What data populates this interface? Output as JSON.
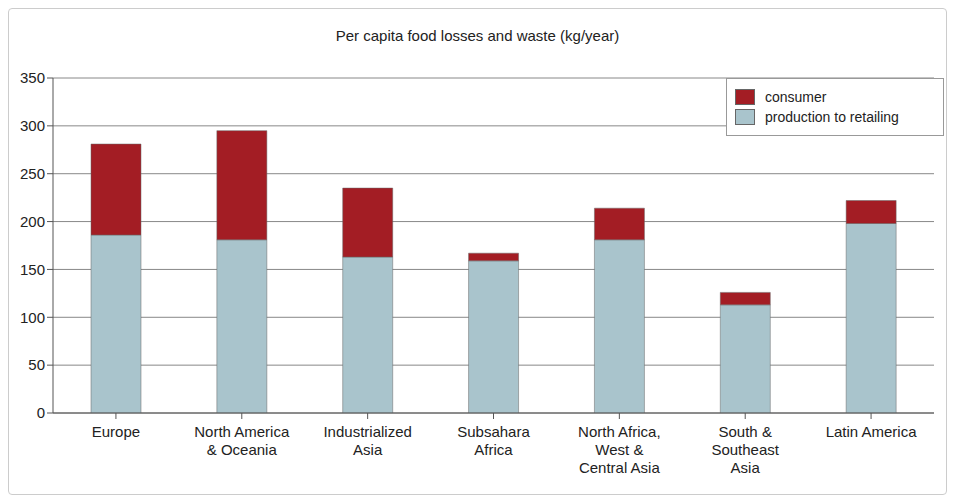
{
  "chart_data": {
    "type": "bar",
    "title": "Per capita food losses and waste (kg/year)",
    "categories": [
      "Europe",
      "North America & Oceania",
      "Industrialized Asia",
      "Subsahara Africa",
      "North Africa, West & Central Asia",
      "South & Southeast Asia",
      "Latin America"
    ],
    "series": [
      {
        "name": "production to retailing",
        "color": "#a9c4cc",
        "values": [
          186,
          181,
          163,
          159,
          181,
          113,
          198
        ]
      },
      {
        "name": "consumer",
        "color": "#a31d24",
        "values": [
          95,
          114,
          72,
          8,
          33,
          13,
          24
        ]
      }
    ],
    "stacked": true,
    "ylim": [
      0,
      350
    ],
    "yticks": [
      0,
      50,
      100,
      150,
      200,
      250,
      300,
      350
    ],
    "grid": true,
    "legend": "upper right"
  }
}
